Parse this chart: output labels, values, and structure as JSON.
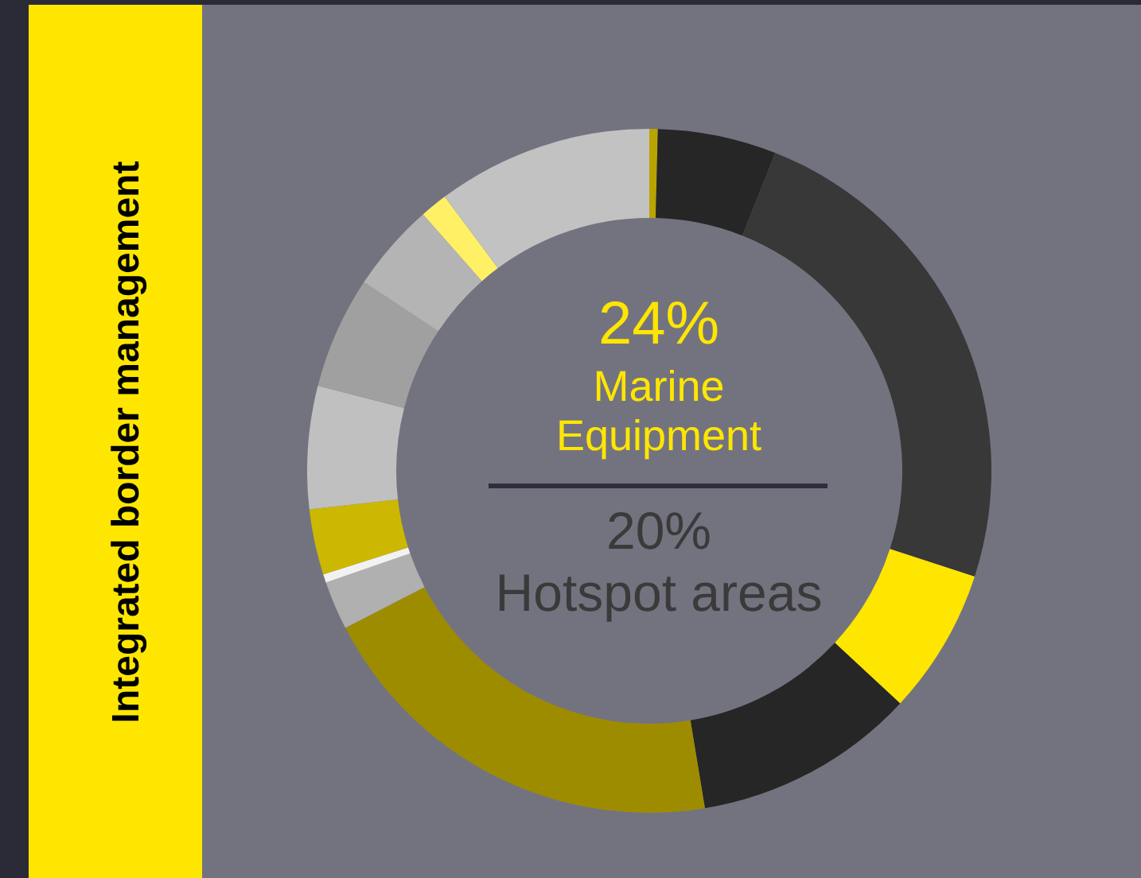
{
  "chart_data": {
    "type": "donut",
    "title": "Integrated border management",
    "categories": [
      null,
      null,
      null,
      null,
      null,
      null,
      null,
      null,
      null,
      null,
      null,
      null,
      null,
      null
    ],
    "values": [
      0.4,
      5.6,
      24,
      6.9,
      10.5,
      20,
      2.3,
      0.4,
      3.1,
      5.8,
      5.3,
      4.2,
      1.3,
      10.2
    ],
    "colors": [
      "#b8a400",
      "#262626",
      "#383838",
      "#ffe600",
      "#262626",
      "#9e8c00",
      "#b0b0b0",
      "#f2f2f2",
      "#ccb800",
      "#c0c0c0",
      "#a0a0a0",
      "#b4b4b4",
      "#fff066",
      "#c2c2c2"
    ],
    "annotations": [
      "24%",
      "Marine Equipment",
      "20%",
      "Hotspot areas"
    ]
  }
}
